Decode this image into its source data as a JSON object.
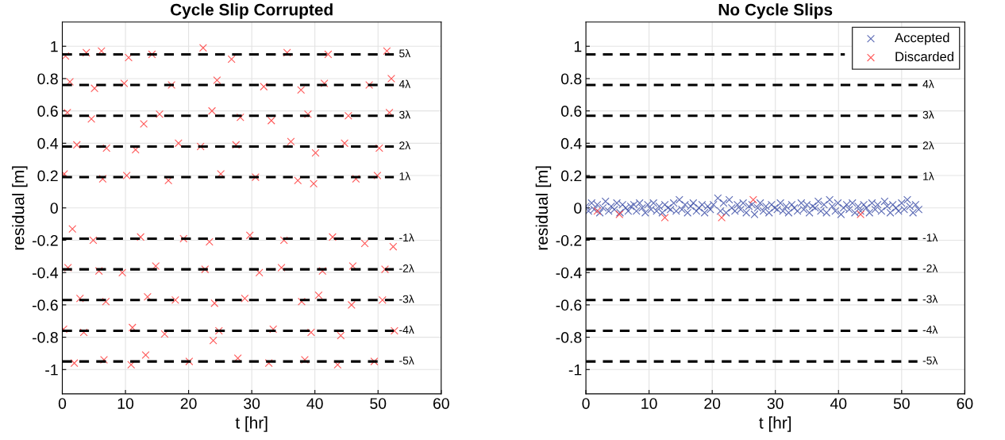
{
  "chart_data": [
    {
      "type": "scatter",
      "title": "Cycle Slip Corrupted",
      "xlabel": "t [hr]",
      "ylabel": "residual [m]",
      "xlim": [
        0,
        60
      ],
      "xticks": [
        0,
        10,
        20,
        30,
        40,
        50,
        60
      ],
      "ylim": [
        -1.15,
        1.15
      ],
      "yticks": [
        -1,
        -0.8,
        -0.6,
        -0.4,
        -0.2,
        0,
        0.2,
        0.4,
        0.6,
        0.8,
        1
      ],
      "grid": true,
      "marker": "cross",
      "legend": false,
      "series": [
        {
          "color": "#ff3b3b",
          "x": [
            0.5,
            3.8,
            6.2,
            10.5,
            14.2,
            22.3,
            26.8,
            35.6,
            42.1,
            51.4,
            1.2,
            5.1,
            9.8,
            17.3,
            24.5,
            31.9,
            37.8,
            41.5,
            48.6,
            52.1,
            0.8,
            4.6,
            12.9,
            15.4,
            23.7,
            28.2,
            33.1,
            38.9,
            45.3,
            51.8,
            2.3,
            7.0,
            11.6,
            18.4,
            21.9,
            27.5,
            36.2,
            40.1,
            44.7,
            50.2,
            0.3,
            6.4,
            10.2,
            16.8,
            25.1,
            30.6,
            37.3,
            39.8,
            46.5,
            49.9,
            1.6,
            4.9,
            12.4,
            19.2,
            23.3,
            29.7,
            35.1,
            42.8,
            47.9,
            52.4,
            0.9,
            5.8,
            9.5,
            14.8,
            22.6,
            31.2,
            34.7,
            41.2,
            46.0,
            51.1,
            2.8,
            6.9,
            13.5,
            17.9,
            24.1,
            28.9,
            37.9,
            40.6,
            45.8,
            50.7,
            0.2,
            3.4,
            11.1,
            16.2,
            23.9,
            24.8,
            33.4,
            39.4,
            44.1,
            52.6,
            1.9,
            6.6,
            10.9,
            13.2,
            20.1,
            27.8,
            32.7,
            38.4,
            43.6,
            49.4
          ],
          "values": [
            0.94,
            0.96,
            0.97,
            0.93,
            0.95,
            0.99,
            0.92,
            0.96,
            0.95,
            0.97,
            0.78,
            0.74,
            0.77,
            0.76,
            0.79,
            0.75,
            0.73,
            0.77,
            0.76,
            0.8,
            0.59,
            0.55,
            0.52,
            0.58,
            0.6,
            0.56,
            0.54,
            0.58,
            0.57,
            0.59,
            0.39,
            0.37,
            0.36,
            0.4,
            0.38,
            0.39,
            0.41,
            0.34,
            0.4,
            0.37,
            0.21,
            0.18,
            0.2,
            0.17,
            0.21,
            0.19,
            0.17,
            0.15,
            0.18,
            0.2,
            -0.13,
            -0.2,
            -0.18,
            -0.19,
            -0.21,
            -0.17,
            -0.2,
            -0.18,
            -0.22,
            -0.24,
            -0.37,
            -0.39,
            -0.4,
            -0.36,
            -0.38,
            -0.4,
            -0.37,
            -0.39,
            -0.36,
            -0.38,
            -0.56,
            -0.58,
            -0.55,
            -0.57,
            -0.59,
            -0.56,
            -0.58,
            -0.54,
            -0.6,
            -0.57,
            -0.75,
            -0.77,
            -0.74,
            -0.78,
            -0.82,
            -0.76,
            -0.75,
            -0.77,
            -0.79,
            -0.76,
            -0.96,
            -0.94,
            -0.97,
            -0.91,
            -0.95,
            -0.93,
            -0.96,
            -0.94,
            -0.97,
            -0.95
          ]
        },
        {
          "type": "line",
          "name": "5λ",
          "color": "#000000",
          "line_style": "dashed",
          "marker": "none",
          "x": [
            0,
            52.5
          ],
          "values": [
            0.95,
            0.95
          ]
        },
        {
          "type": "line",
          "name": "4λ",
          "color": "#000000",
          "line_style": "dashed",
          "marker": "none",
          "x": [
            0,
            52.5
          ],
          "values": [
            0.76,
            0.76
          ]
        },
        {
          "type": "line",
          "name": "3λ",
          "color": "#000000",
          "line_style": "dashed",
          "marker": "none",
          "x": [
            0,
            52.5
          ],
          "values": [
            0.57,
            0.57
          ]
        },
        {
          "type": "line",
          "name": "2λ",
          "color": "#000000",
          "line_style": "dashed",
          "marker": "none",
          "x": [
            0,
            52.5
          ],
          "values": [
            0.38,
            0.38
          ]
        },
        {
          "type": "line",
          "name": "1λ",
          "color": "#000000",
          "line_style": "dashed",
          "marker": "none",
          "x": [
            0,
            52.5
          ],
          "values": [
            0.19,
            0.19
          ]
        },
        {
          "type": "line",
          "name": "-1λ",
          "color": "#000000",
          "line_style": "dashed",
          "marker": "none",
          "x": [
            0,
            52.5
          ],
          "values": [
            -0.19,
            -0.19
          ]
        },
        {
          "type": "line",
          "name": "-2λ",
          "color": "#000000",
          "line_style": "dashed",
          "marker": "none",
          "x": [
            0,
            52.5
          ],
          "values": [
            -0.38,
            -0.38
          ]
        },
        {
          "type": "line",
          "name": "-3λ",
          "color": "#000000",
          "line_style": "dashed",
          "marker": "none",
          "x": [
            0,
            52.5
          ],
          "values": [
            -0.57,
            -0.57
          ]
        },
        {
          "type": "line",
          "name": "-4λ",
          "color": "#000000",
          "line_style": "dashed",
          "marker": "none",
          "x": [
            0,
            52.5
          ],
          "values": [
            -0.76,
            -0.76
          ]
        },
        {
          "type": "line",
          "name": "-5λ",
          "color": "#000000",
          "line_style": "dashed",
          "marker": "none",
          "x": [
            0,
            52.5
          ],
          "values": [
            -0.95,
            -0.95
          ]
        }
      ]
    },
    {
      "type": "scatter",
      "title": "No Cycle Slips",
      "xlabel": "t [hr]",
      "ylabel": "residual [m]",
      "xlim": [
        0,
        60
      ],
      "xticks": [
        0,
        10,
        20,
        30,
        40,
        50,
        60
      ],
      "ylim": [
        -1.15,
        1.15
      ],
      "yticks": [
        -1,
        -0.8,
        -0.6,
        -0.4,
        -0.2,
        0,
        0.2,
        0.4,
        0.6,
        0.8,
        1
      ],
      "grid": true,
      "marker": "cross",
      "legend": "top right",
      "series": [
        {
          "type": "line",
          "color": "#000000",
          "line_style": "dashed",
          "marker": "none",
          "x": [
            0,
            41
          ],
          "values": [
            0.95,
            0.95
          ]
        },
        {
          "type": "line",
          "name": "4λ",
          "color": "#000000",
          "line_style": "dashed",
          "marker": "none",
          "x": [
            0,
            52.5
          ],
          "values": [
            0.76,
            0.76
          ]
        },
        {
          "type": "line",
          "name": "3λ",
          "color": "#000000",
          "line_style": "dashed",
          "marker": "none",
          "x": [
            0,
            52.5
          ],
          "values": [
            0.57,
            0.57
          ]
        },
        {
          "type": "line",
          "name": "2λ",
          "color": "#000000",
          "line_style": "dashed",
          "marker": "none",
          "x": [
            0,
            52.5
          ],
          "values": [
            0.38,
            0.38
          ]
        },
        {
          "type": "line",
          "name": "1λ",
          "color": "#000000",
          "line_style": "dashed",
          "marker": "none",
          "x": [
            0,
            52.5
          ],
          "values": [
            0.19,
            0.19
          ]
        },
        {
          "type": "line",
          "name": "-1λ",
          "color": "#000000",
          "line_style": "dashed",
          "marker": "none",
          "x": [
            0,
            52.5
          ],
          "values": [
            -0.19,
            -0.19
          ]
        },
        {
          "type": "line",
          "name": "-2λ",
          "color": "#000000",
          "line_style": "dashed",
          "marker": "none",
          "x": [
            0,
            52.5
          ],
          "values": [
            -0.38,
            -0.38
          ]
        },
        {
          "type": "line",
          "name": "-3λ",
          "color": "#000000",
          "line_style": "dashed",
          "marker": "none",
          "x": [
            0,
            52.5
          ],
          "values": [
            -0.57,
            -0.57
          ]
        },
        {
          "type": "line",
          "name": "-4λ",
          "color": "#000000",
          "line_style": "dashed",
          "marker": "none",
          "x": [
            0,
            52.5
          ],
          "values": [
            -0.76,
            -0.76
          ]
        },
        {
          "type": "line",
          "name": "-5λ",
          "color": "#000000",
          "line_style": "dashed",
          "marker": "none",
          "x": [
            0,
            52.5
          ],
          "values": [
            -0.95,
            -0.95
          ]
        },
        {
          "name": "Accepted",
          "color": "#3f51a8",
          "x": [
            0,
            0.4,
            0.9,
            1.3,
            1.8,
            2.2,
            2.7,
            3.1,
            3.6,
            4.0,
            4.5,
            4.9,
            5.4,
            5.8,
            6.3,
            6.7,
            7.1,
            7.6,
            8.0,
            8.5,
            8.9,
            9.4,
            9.8,
            10.3,
            10.7,
            11.2,
            11.6,
            12.1,
            12.5,
            13.0,
            13.4,
            13.9,
            14.3,
            14.8,
            15.2,
            15.7,
            16.1,
            16.6,
            17.0,
            17.5,
            17.9,
            18.4,
            18.8,
            19.3,
            19.7,
            20.2,
            20.9,
            21.3,
            21.8,
            22.2,
            22.7,
            23.1,
            23.6,
            24.0,
            24.5,
            24.9,
            25.4,
            25.8,
            26.3,
            26.7,
            27.2,
            27.6,
            28.1,
            28.5,
            29.0,
            29.4,
            29.9,
            30.3,
            30.8,
            31.2,
            31.7,
            32.1,
            32.6,
            33.0,
            33.5,
            34.1,
            34.5,
            35.0,
            35.4,
            35.9,
            36.3,
            36.8,
            37.2,
            37.7,
            38.1,
            38.6,
            39.0,
            39.5,
            39.9,
            40.4,
            40.8,
            41.3,
            41.7,
            42.2,
            42.6,
            43.1,
            43.5,
            44.0,
            44.4,
            44.9,
            45.3,
            45.8,
            46.2,
            46.8,
            47.3,
            47.7,
            48.2,
            48.6,
            49.1,
            49.5,
            50.0,
            50.4,
            50.9,
            51.3,
            51.8,
            52.2,
            52.7
          ],
          "values": [
            0.01,
            -0.02,
            0.03,
            -0.01,
            0.02,
            -0.03,
            0.0,
            0.04,
            -0.02,
            0.01,
            -0.01,
            0.03,
            -0.03,
            0.02,
            0.0,
            -0.02,
            0.01,
            0.02,
            -0.02,
            0.03,
            0.0,
            -0.03,
            0.02,
            -0.01,
            0.03,
            -0.02,
            0.01,
            -0.03,
            0.02,
            0.0,
            -0.01,
            0.03,
            -0.02,
            0.05,
            -0.01,
            0.02,
            -0.03,
            0.01,
            0.03,
            -0.02,
            0.0,
            0.02,
            -0.03,
            0.01,
            -0.01,
            0.02,
            0.06,
            -0.02,
            0.03,
            -0.03,
            0.05,
            0.0,
            -0.02,
            0.02,
            -0.01,
            0.03,
            -0.03,
            0.01,
            0.02,
            -0.04,
            0.0,
            0.03,
            -0.02,
            0.01,
            -0.03,
            0.02,
            0.0,
            -0.01,
            0.03,
            -0.02,
            0.01,
            -0.03,
            0.02,
            0.0,
            -0.02,
            0.03,
            -0.01,
            0.02,
            -0.03,
            0.01,
            0.0,
            0.04,
            -0.02,
            0.02,
            -0.03,
            0.05,
            0.01,
            -0.02,
            0.03,
            -0.04,
            0.0,
            0.02,
            -0.01,
            0.03,
            -0.03,
            0.01,
            -0.02,
            0.02,
            0.0,
            -0.03,
            0.03,
            -0.01,
            0.02,
            -0.02,
            0.04,
            0.01,
            -0.03,
            0.02,
            0.0,
            -0.02,
            0.03,
            -0.01,
            0.05,
            0.01,
            -0.03,
            0.02,
            -0.01
          ]
        },
        {
          "name": "Discarded",
          "color": "#ff3b3b",
          "x": [
            1.8,
            5.3,
            12.5,
            21.5,
            26.5,
            43.5
          ],
          "values": [
            -0.02,
            -0.04,
            -0.06,
            -0.06,
            0.05,
            -0.04
          ]
        }
      ]
    }
  ]
}
